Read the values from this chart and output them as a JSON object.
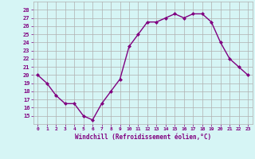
{
  "x": [
    0,
    1,
    2,
    3,
    4,
    5,
    6,
    7,
    8,
    9,
    10,
    11,
    12,
    13,
    14,
    15,
    16,
    17,
    18,
    19,
    20,
    21,
    22,
    23
  ],
  "y": [
    20,
    19,
    17.5,
    16.5,
    16.5,
    15,
    14.5,
    16.5,
    18,
    19.5,
    23.5,
    25,
    26.5,
    26.5,
    27,
    27.5,
    27,
    27.5,
    27.5,
    26.5,
    24,
    22,
    21,
    20
  ],
  "xlim": [
    -0.5,
    23.5
  ],
  "ylim": [
    14,
    29
  ],
  "yticks": [
    15,
    16,
    17,
    18,
    19,
    20,
    21,
    22,
    23,
    24,
    25,
    26,
    27,
    28
  ],
  "xtick_labels": [
    "0",
    "1",
    "2",
    "3",
    "4",
    "5",
    "6",
    "7",
    "8",
    "9",
    "10",
    "11",
    "12",
    "13",
    "14",
    "15",
    "16",
    "17",
    "18",
    "19",
    "20",
    "21",
    "22",
    "23"
  ],
  "xlabel": "Windchill (Refroidissement éolien,°C)",
  "line_color": "#800080",
  "marker": "D",
  "marker_size": 2,
  "bg_color": "#d6f5f5",
  "grid_color": "#b0b0b0",
  "tick_label_color": "#800080",
  "xlabel_color": "#800080",
  "line_width": 1.0
}
